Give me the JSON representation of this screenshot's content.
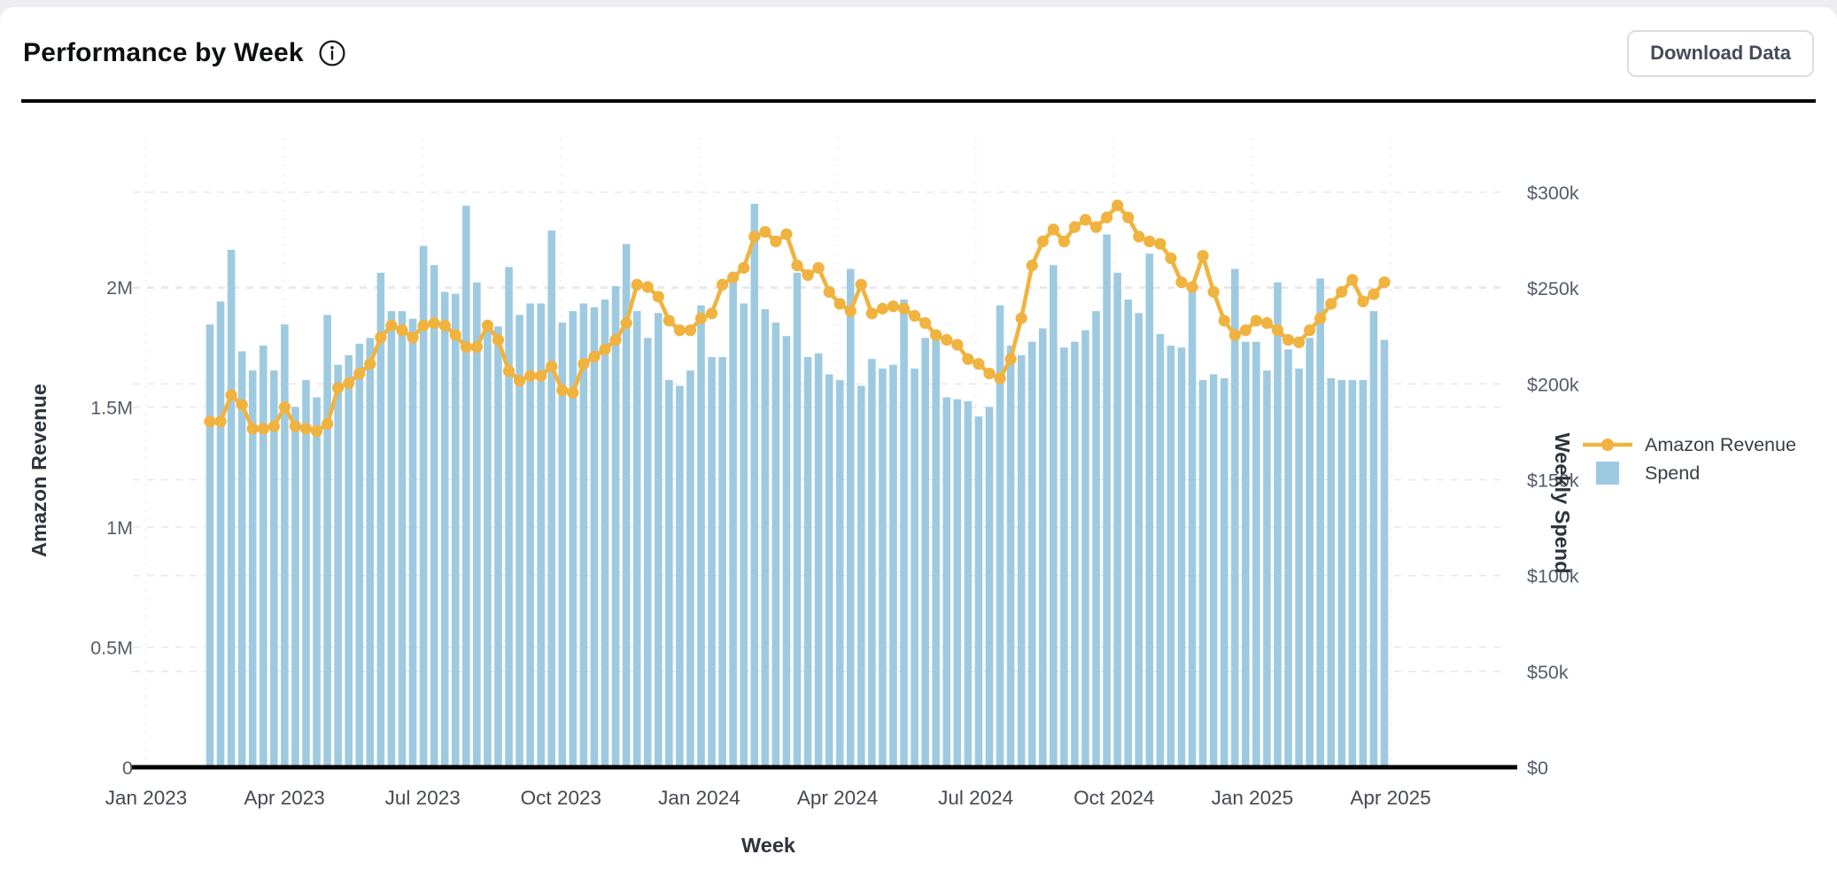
{
  "header": {
    "title": "Performance by Week",
    "download_label": "Download Data"
  },
  "chart_data": {
    "type": "bar+line-dual-axis",
    "title": "Performance by Week",
    "x_axis": {
      "title": "Week",
      "tick_labels": [
        "Jan 2023",
        "Apr 2023",
        "Jul 2023",
        "Oct 2023",
        "Jan 2024",
        "Apr 2024",
        "Jul 2024",
        "Oct 2024",
        "Jan 2025",
        "Apr 2025"
      ]
    },
    "left_axis": {
      "title": "Amazon Revenue",
      "tick_labels": [
        "0",
        "0.5M",
        "1M",
        "1.5M",
        "2M"
      ],
      "tick_values": [
        0,
        0.5,
        1,
        1.5,
        2
      ],
      "unit": "M",
      "range": [
        0,
        2.58
      ]
    },
    "right_axis": {
      "title": "Weekly Spend",
      "tick_labels": [
        "$0",
        "$50k",
        "$100k",
        "$150k",
        "$200k",
        "$250k",
        "$300k"
      ],
      "tick_values": [
        0,
        50,
        100,
        150,
        200,
        250,
        300
      ],
      "unit": "k",
      "range": [
        0,
        323
      ]
    },
    "legend": [
      {
        "label": "Amazon Revenue",
        "marker": "line-dot",
        "color": "#F1B33F"
      },
      {
        "label": "Spend",
        "marker": "square",
        "color": "#9ECAE1"
      }
    ],
    "grid": "dashed",
    "series": [
      {
        "name": "Amazon Revenue",
        "type": "line",
        "axis": "left",
        "unit": "M",
        "color": "#F1B33F",
        "values": [
          1.44,
          1.44,
          1.55,
          1.51,
          1.41,
          1.41,
          1.42,
          1.5,
          1.42,
          1.41,
          1.4,
          1.43,
          1.58,
          1.6,
          1.64,
          1.68,
          1.79,
          1.84,
          1.82,
          1.79,
          1.84,
          1.85,
          1.84,
          1.8,
          1.75,
          1.75,
          1.84,
          1.78,
          1.65,
          1.61,
          1.63,
          1.63,
          1.67,
          1.57,
          1.56,
          1.68,
          1.71,
          1.74,
          1.78,
          1.85,
          2.01,
          2.0,
          1.96,
          1.86,
          1.82,
          1.82,
          1.87,
          1.89,
          2.01,
          2.04,
          2.08,
          2.21,
          2.23,
          2.19,
          2.22,
          2.09,
          2.05,
          2.08,
          1.98,
          1.93,
          1.9,
          2.01,
          1.89,
          1.91,
          1.92,
          1.91,
          1.88,
          1.85,
          1.8,
          1.78,
          1.76,
          1.7,
          1.68,
          1.64,
          1.62,
          1.7,
          1.87,
          2.09,
          2.19,
          2.24,
          2.19,
          2.25,
          2.28,
          2.25,
          2.29,
          2.34,
          2.29,
          2.21,
          2.19,
          2.18,
          2.12,
          2.02,
          2.0,
          2.13,
          1.98,
          1.86,
          1.8,
          1.82,
          1.86,
          1.85,
          1.82,
          1.78,
          1.77,
          1.82,
          1.87,
          1.93,
          1.98,
          2.03,
          1.94,
          1.97,
          2.02
        ]
      },
      {
        "name": "Spend",
        "type": "bar",
        "axis": "right",
        "unit": "k",
        "color": "#9ECAE1",
        "values": [
          231,
          243,
          270,
          217,
          207,
          220,
          207,
          231,
          188,
          202,
          193,
          236,
          210,
          215,
          221,
          224,
          258,
          238,
          238,
          234,
          272,
          262,
          248,
          247,
          293,
          253,
          233,
          230,
          261,
          236,
          242,
          242,
          280,
          232,
          238,
          242,
          240,
          244,
          251,
          273,
          238,
          224,
          237,
          202,
          199,
          207,
          241,
          214,
          214,
          253,
          242,
          294,
          239,
          232,
          225,
          258,
          214,
          216,
          205,
          202,
          260,
          199,
          213,
          208,
          210,
          244,
          208,
          224,
          223,
          193,
          192,
          191,
          183,
          188,
          241,
          220,
          215,
          222,
          229,
          262,
          219,
          222,
          228,
          238,
          278,
          258,
          244,
          237,
          268,
          226,
          220,
          219,
          251,
          202,
          205,
          203,
          260,
          222,
          222,
          207,
          253,
          218,
          208,
          224,
          255,
          203,
          202,
          202,
          202,
          238,
          223
        ]
      }
    ]
  }
}
